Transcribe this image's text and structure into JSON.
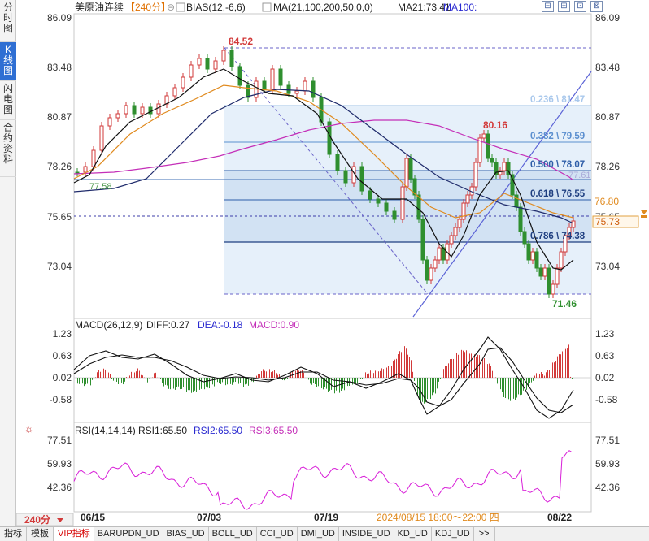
{
  "sidebar": {
    "tabs": [
      {
        "label": "分时图",
        "active": false
      },
      {
        "label": "K线图",
        "active": true
      },
      {
        "label": "闪电图",
        "active": false
      },
      {
        "label": "合约资料",
        "active": false
      }
    ]
  },
  "header": {
    "symbol": "美原油连续",
    "period": "【240分】",
    "indicator_1": "BIAS(12,-6,6)",
    "indicator_2": "MA(21,100,200,50,0,0)",
    "ma21": "MA21:73.41",
    "ma100": "MA100:",
    "window_buttons": [
      "⊟",
      "⊞",
      "⊡",
      "⊠"
    ]
  },
  "price_panel": {
    "axis_labels": [
      "86.09",
      "83.48",
      "80.87",
      "78.26",
      "75.65",
      "73.04"
    ],
    "high_label": "84.52",
    "low_label": "71.46",
    "left_low_label": "77.58",
    "peak_label": "80.16",
    "current_price": "75.73",
    "orange_price": "76.80",
    "dashed_price": "75.65",
    "fib": [
      {
        "label": "0.236 \\ 81.47"
      },
      {
        "label": "0.382 \\ 79.59"
      },
      {
        "label": "0.500 \\ 78.07"
      },
      {
        "label": "0.618 \\ 76.55"
      },
      {
        "label": "0.786 \\ 74.38"
      }
    ],
    "magenta_value": "77.61"
  },
  "macd_panel": {
    "title": "MACD(26,12,9)",
    "diff": "DIFF:0.27",
    "dea": "DEA:-0.18",
    "macd": "MACD:0.90",
    "axis_labels": [
      "1.23",
      "0.63",
      "0.02",
      "-0.58"
    ]
  },
  "rsi_panel": {
    "title": "RSI(14,14,14)",
    "rsi1": "RSI1:65.50",
    "rsi2": "RSI2:65.50",
    "rsi3": "RSI3:65.50",
    "axis_labels": [
      "77.51",
      "59.93",
      "42.36"
    ]
  },
  "time_axis": {
    "period_button": "240分",
    "dates": [
      "06/15",
      "07/03",
      "07/19",
      "08/22"
    ],
    "cursor_time": "2024/08/15 18:00～22:00 四"
  },
  "bottom_tabs": [
    "指标",
    "模板",
    "VIP指标",
    "BARUPDN_UD",
    "BIAS_UD",
    "BOLL_UD",
    "CCI_UD",
    "DMI_UD",
    "INSIDE_UD",
    "KD_UD",
    "KDJ_UD",
    ">>"
  ],
  "colors": {
    "up": "#d23a3a",
    "down": "#2f8f2f",
    "ma_black": "#111111",
    "ma_orange": "#e08a1e",
    "ma_navy": "#1f2b6b",
    "ma_magenta": "#c42fb8",
    "fib_zone": "#dbe9f8",
    "fib_line": "#2f5ea8",
    "rsi": "#d81ed8",
    "accent_blue": "#2f6fd3"
  }
}
